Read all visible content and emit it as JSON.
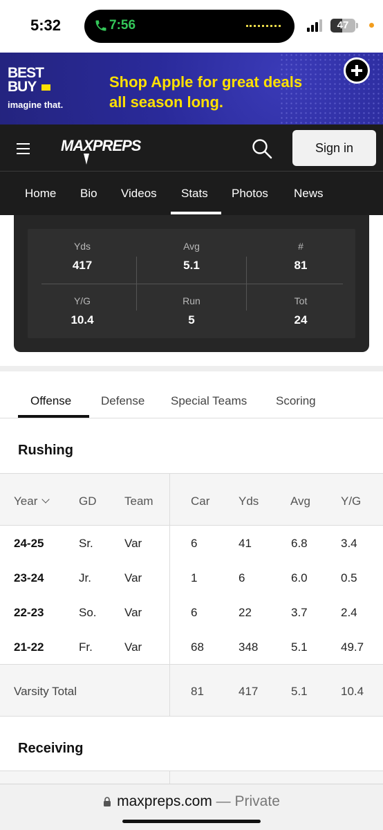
{
  "status_bar": {
    "time": "5:32",
    "call_timer": "7:56",
    "battery": "47",
    "battery_level": 0.47
  },
  "ad": {
    "logo_line1": "BEST",
    "logo_line2": "BUY",
    "tagline": "imagine that.",
    "headline_line1": "Shop Apple for great deals",
    "headline_line2": "all season long.",
    "brand_color": "#ffe000",
    "background_color": "#2a2a9a"
  },
  "header": {
    "logo": "MAXPREPS",
    "sign_in": "Sign in",
    "nav": [
      "Home",
      "Bio",
      "Videos",
      "Stats",
      "Photos",
      "News"
    ],
    "active_nav": "Stats"
  },
  "summary": {
    "top": [
      {
        "label": "Yds",
        "value": "417"
      },
      {
        "label": "Avg",
        "value": "5.1"
      },
      {
        "label": "#",
        "value": "81"
      }
    ],
    "bottom": [
      {
        "label": "Y/G",
        "value": "10.4"
      },
      {
        "label": "Run",
        "value": "5"
      },
      {
        "label": "Tot",
        "value": "24"
      }
    ]
  },
  "categories": {
    "tabs": [
      "Offense",
      "Defense",
      "Special Teams",
      "Scoring"
    ],
    "active": "Offense"
  },
  "rushing": {
    "title": "Rushing",
    "columns": [
      "Year",
      "GD",
      "Team",
      "Car",
      "Yds",
      "Avg",
      "Y/G"
    ],
    "rows": [
      [
        "24-25",
        "Sr.",
        "Var",
        "6",
        "41",
        "6.8",
        "3.4"
      ],
      [
        "23-24",
        "Jr.",
        "Var",
        "1",
        "6",
        "6.0",
        "0.5"
      ],
      [
        "22-23",
        "So.",
        "Var",
        "6",
        "22",
        "3.7",
        "2.4"
      ],
      [
        "21-22",
        "Fr.",
        "Var",
        "68",
        "348",
        "5.1",
        "49.7"
      ]
    ],
    "total": {
      "label": "Varsity Total",
      "car": "81",
      "yds": "417",
      "avg": "5.1",
      "yg": "10.4"
    }
  },
  "receiving": {
    "title": "Receiving"
  },
  "browser": {
    "host": "maxpreps.com",
    "suffix": " — Private"
  }
}
